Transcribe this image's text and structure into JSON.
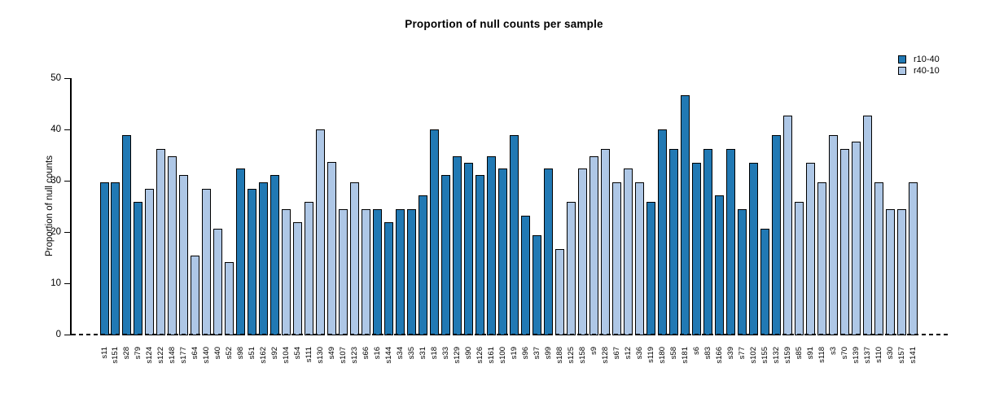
{
  "chart_data": {
    "type": "bar",
    "title": "Proportion of null counts per sample",
    "xlabel": "",
    "ylabel": "Proportion of null counts",
    "ylim": [
      0,
      50
    ],
    "yticks": [
      0,
      10,
      20,
      30,
      40,
      50
    ],
    "grid": false,
    "legend_position": "top-right",
    "series": [
      {
        "name": "r10-40",
        "color": "#2179b4"
      },
      {
        "name": "r40-10",
        "color": "#aec7e6"
      }
    ],
    "bars": [
      {
        "label": "s11",
        "value": 29.8,
        "series": "r10-40"
      },
      {
        "label": "s151",
        "value": 29.8,
        "series": "r10-40"
      },
      {
        "label": "s28",
        "value": 39.0,
        "series": "r10-40"
      },
      {
        "label": "s79",
        "value": 26.0,
        "series": "r10-40"
      },
      {
        "label": "s124",
        "value": 28.5,
        "series": "r40-10"
      },
      {
        "label": "s122",
        "value": 36.4,
        "series": "r40-10"
      },
      {
        "label": "s148",
        "value": 35.0,
        "series": "r40-10"
      },
      {
        "label": "s177",
        "value": 31.2,
        "series": "r40-10"
      },
      {
        "label": "s64",
        "value": 15.5,
        "series": "r40-10"
      },
      {
        "label": "s140",
        "value": 28.5,
        "series": "r40-10"
      },
      {
        "label": "s40",
        "value": 20.8,
        "series": "r40-10"
      },
      {
        "label": "s52",
        "value": 14.3,
        "series": "r40-10"
      },
      {
        "label": "s98",
        "value": 32.5,
        "series": "r10-40"
      },
      {
        "label": "s51",
        "value": 28.5,
        "series": "r10-40"
      },
      {
        "label": "s162",
        "value": 29.9,
        "series": "r10-40"
      },
      {
        "label": "s92",
        "value": 31.2,
        "series": "r10-40"
      },
      {
        "label": "s104",
        "value": 24.6,
        "series": "r40-10"
      },
      {
        "label": "s54",
        "value": 22.1,
        "series": "r40-10"
      },
      {
        "label": "s111",
        "value": 26.0,
        "series": "r40-10"
      },
      {
        "label": "s130",
        "value": 40.2,
        "series": "r40-10"
      },
      {
        "label": "s49",
        "value": 33.8,
        "series": "r40-10"
      },
      {
        "label": "s107",
        "value": 24.6,
        "series": "r40-10"
      },
      {
        "label": "s123",
        "value": 29.8,
        "series": "r40-10"
      },
      {
        "label": "s66",
        "value": 24.6,
        "series": "r40-10"
      },
      {
        "label": "s16",
        "value": 24.6,
        "series": "r10-40"
      },
      {
        "label": "s144",
        "value": 22.1,
        "series": "r10-40"
      },
      {
        "label": "s34",
        "value": 24.6,
        "series": "r10-40"
      },
      {
        "label": "s35",
        "value": 24.6,
        "series": "r10-40"
      },
      {
        "label": "s31",
        "value": 27.3,
        "series": "r10-40"
      },
      {
        "label": "s18",
        "value": 40.2,
        "series": "r10-40"
      },
      {
        "label": "s33",
        "value": 31.2,
        "series": "r10-40"
      },
      {
        "label": "s129",
        "value": 35.0,
        "series": "r10-40"
      },
      {
        "label": "s90",
        "value": 33.7,
        "series": "r10-40"
      },
      {
        "label": "s126",
        "value": 31.2,
        "series": "r10-40"
      },
      {
        "label": "s161",
        "value": 35.0,
        "series": "r10-40"
      },
      {
        "label": "s100",
        "value": 32.5,
        "series": "r10-40"
      },
      {
        "label": "s19",
        "value": 39.0,
        "series": "r10-40"
      },
      {
        "label": "s96",
        "value": 23.4,
        "series": "r10-40"
      },
      {
        "label": "s37",
        "value": 19.5,
        "series": "r10-40"
      },
      {
        "label": "s99",
        "value": 32.5,
        "series": "r10-40"
      },
      {
        "label": "s188",
        "value": 16.8,
        "series": "r40-10"
      },
      {
        "label": "s125",
        "value": 26.0,
        "series": "r40-10"
      },
      {
        "label": "s158",
        "value": 32.5,
        "series": "r40-10"
      },
      {
        "label": "s9",
        "value": 35.0,
        "series": "r40-10"
      },
      {
        "label": "s128",
        "value": 36.4,
        "series": "r40-10"
      },
      {
        "label": "s67",
        "value": 29.8,
        "series": "r40-10"
      },
      {
        "label": "s12",
        "value": 32.5,
        "series": "r40-10"
      },
      {
        "label": "s36",
        "value": 29.8,
        "series": "r40-10"
      },
      {
        "label": "s119",
        "value": 26.0,
        "series": "r10-40"
      },
      {
        "label": "s180",
        "value": 40.2,
        "series": "r10-40"
      },
      {
        "label": "s58",
        "value": 36.4,
        "series": "r10-40"
      },
      {
        "label": "s181",
        "value": 46.8,
        "series": "r10-40"
      },
      {
        "label": "s6",
        "value": 33.7,
        "series": "r10-40"
      },
      {
        "label": "s83",
        "value": 36.4,
        "series": "r10-40"
      },
      {
        "label": "s166",
        "value": 27.3,
        "series": "r10-40"
      },
      {
        "label": "s39",
        "value": 36.4,
        "series": "r10-40"
      },
      {
        "label": "s77",
        "value": 24.6,
        "series": "r10-40"
      },
      {
        "label": "s102",
        "value": 33.7,
        "series": "r10-40"
      },
      {
        "label": "s155",
        "value": 20.8,
        "series": "r10-40"
      },
      {
        "label": "s132",
        "value": 39.0,
        "series": "r10-40"
      },
      {
        "label": "s159",
        "value": 42.8,
        "series": "r40-10"
      },
      {
        "label": "s85",
        "value": 26.0,
        "series": "r40-10"
      },
      {
        "label": "s91",
        "value": 33.7,
        "series": "r40-10"
      },
      {
        "label": "s118",
        "value": 29.8,
        "series": "r40-10"
      },
      {
        "label": "s3",
        "value": 39.0,
        "series": "r40-10"
      },
      {
        "label": "s70",
        "value": 36.4,
        "series": "r40-10"
      },
      {
        "label": "s139",
        "value": 37.7,
        "series": "r40-10"
      },
      {
        "label": "s137",
        "value": 42.8,
        "series": "r40-10"
      },
      {
        "label": "s110",
        "value": 29.8,
        "series": "r40-10"
      },
      {
        "label": "s30",
        "value": 24.6,
        "series": "r40-10"
      },
      {
        "label": "s157",
        "value": 24.6,
        "series": "r40-10"
      },
      {
        "label": "s141",
        "value": 29.8,
        "series": "r40-10"
      }
    ]
  }
}
